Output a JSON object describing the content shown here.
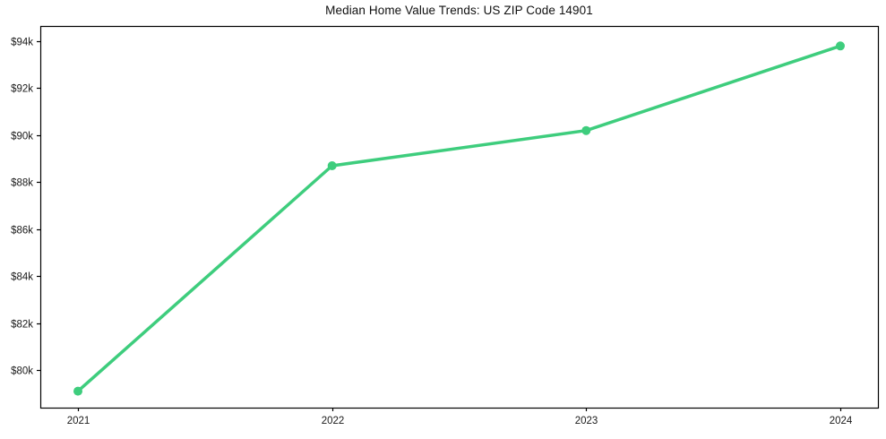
{
  "chart_data": {
    "type": "line",
    "title": "Median Home Value Trends: US ZIP Code 14901",
    "categories": [
      "2021",
      "2022",
      "2023",
      "2024"
    ],
    "series": [
      {
        "name": "Median Home Value",
        "values": [
          79100,
          88700,
          90200,
          93800
        ]
      }
    ],
    "xlabel": "",
    "ylabel": "",
    "ytick_values": [
      80000,
      82000,
      84000,
      86000,
      88000,
      90000,
      92000,
      94000
    ],
    "ytick_labels": [
      "$80k",
      "$82k",
      "$84k",
      "$86k",
      "$88k",
      "$90k",
      "$92k",
      "$94k"
    ],
    "ylim": [
      78400,
      94650
    ],
    "grid": false,
    "legend": "none",
    "marker": "circle",
    "colors": {
      "line": "#3ecd7d",
      "marker": "#3ecd7d",
      "frame": "#000000",
      "text": "#1a1a1a",
      "background": "#ffffff"
    }
  }
}
